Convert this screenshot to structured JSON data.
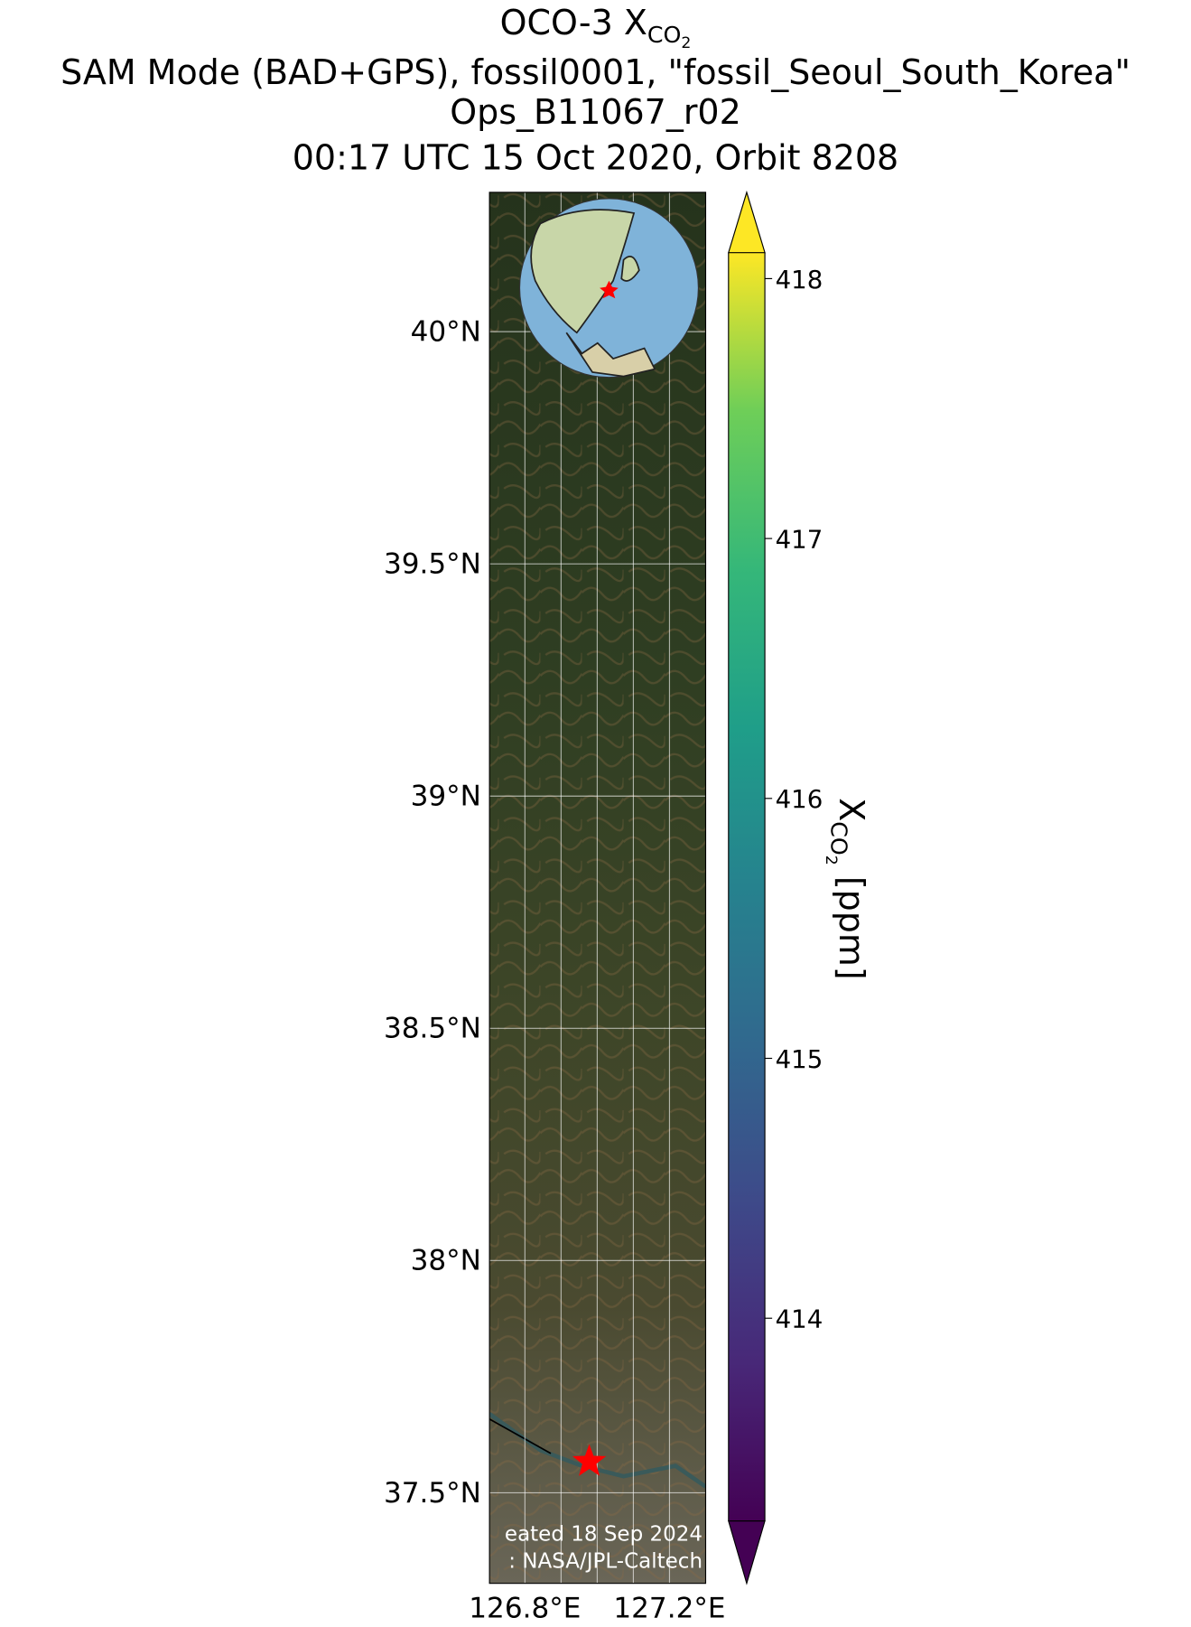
{
  "chart_data": {
    "type": "map",
    "title": {
      "main": "OCO-3 X",
      "sub": "CO",
      "subsub": "2"
    },
    "subtitle": [
      "SAM Mode (BAD+GPS), fossil0001, \"fossil_Seoul_South_Korea\"",
      "Ops_B11067_r02",
      "00:17 UTC 15 Oct 2020, Orbit 8208"
    ],
    "xlim": [
      126.702,
      127.3
    ],
    "ylim": [
      37.305,
      40.3
    ],
    "xticks": [
      {
        "value": 126.8,
        "label": "126.8°E"
      },
      {
        "value": 127.2,
        "label": "127.2°E"
      }
    ],
    "xgrid": [
      126.8,
      126.9,
      127.0,
      127.1,
      127.2
    ],
    "yticks": [
      {
        "value": 40,
        "label": "40°N"
      },
      {
        "value": 39.5,
        "label": "39.5°N"
      },
      {
        "value": 39,
        "label": "39°N"
      },
      {
        "value": 38.5,
        "label": "38.5°N"
      },
      {
        "value": 38,
        "label": "38°N"
      },
      {
        "value": 37.5,
        "label": "37.5°N"
      }
    ],
    "grid": true,
    "target": {
      "lon": 126.978,
      "lat": 37.567,
      "color": "#ff0000"
    },
    "credits": [
      "eated 18 Sep 2024",
      ": NASA/JPL-Caltech"
    ],
    "colorbar": {
      "label": {
        "main": "X",
        "sub": "CO",
        "subsub": "2",
        "unit": " [ppm]"
      },
      "clim": [
        413.22,
        418.1
      ],
      "ticks": [
        414,
        415,
        416,
        417,
        418
      ],
      "extend": "both",
      "colormap": "viridis"
    }
  }
}
